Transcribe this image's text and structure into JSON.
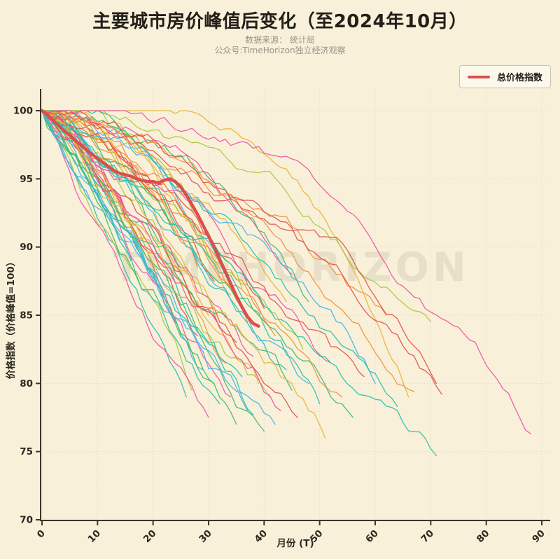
{
  "page": {
    "background": "#f9f0da"
  },
  "header": {
    "title": "主要城市房价峰值后变化（至2024年10月）",
    "subtitle_line1": "数据来源： 统计局",
    "subtitle_line2": "公众号:TimeHorizon独立经济观察"
  },
  "watermark": "TIMEHORIZON",
  "chart_data": {
    "type": "line",
    "title": "主要城市房价峰值后变化（至2024年10月）",
    "xlabel": "月份 (T)",
    "ylabel": "价格指数（价格峰值=100）",
    "xlim": [
      0,
      91.5
    ],
    "ylim": [
      70,
      101.6
    ],
    "x_ticks": [
      0,
      10,
      20,
      30,
      40,
      50,
      60,
      70,
      80,
      90
    ],
    "y_ticks": [
      70,
      75,
      80,
      85,
      90,
      95,
      100
    ],
    "grid": true,
    "colors": {
      "background": "#f9f0da",
      "grid": "#e7ddc2",
      "spine": "#3a362c",
      "tick_label": "#2c2920",
      "total_line": "#d9504b"
    },
    "legend": {
      "position": "top-right",
      "entries": [
        {
          "label": "总价格指数",
          "color": "#d9504b"
        }
      ]
    },
    "total_index": {
      "name": "总价格指数",
      "color": "#d9504b",
      "line_width": 4.5,
      "points": [
        [
          0,
          100
        ],
        [
          1,
          99.7
        ],
        [
          2,
          99.3
        ],
        [
          3,
          98.9
        ],
        [
          4,
          98.5
        ],
        [
          5,
          98.2
        ],
        [
          6,
          97.8
        ],
        [
          7,
          97.5
        ],
        [
          8,
          97.1
        ],
        [
          9,
          96.8
        ],
        [
          10,
          96.5
        ],
        [
          11,
          96.2
        ],
        [
          12,
          95.9
        ],
        [
          13,
          95.6
        ],
        [
          14,
          95.4
        ],
        [
          15,
          95.3
        ],
        [
          16,
          95.2
        ],
        [
          17,
          95.0
        ],
        [
          18,
          94.9
        ],
        [
          19,
          94.8
        ],
        [
          20,
          94.8
        ],
        [
          21,
          94.7
        ],
        [
          22,
          94.9
        ],
        [
          23,
          95.0
        ],
        [
          24,
          94.8
        ],
        [
          25,
          94.4
        ],
        [
          26,
          93.8
        ],
        [
          27,
          93.1
        ],
        [
          28,
          92.4
        ],
        [
          29,
          91.6
        ],
        [
          30,
          90.8
        ],
        [
          31,
          90.0
        ],
        [
          32,
          89.1
        ],
        [
          33,
          88.2
        ],
        [
          34,
          87.3
        ],
        [
          35,
          86.4
        ],
        [
          36,
          85.6
        ],
        [
          37,
          84.9
        ],
        [
          38,
          84.4
        ],
        [
          39,
          84.2
        ]
      ]
    },
    "city_lines": {
      "description": "各城市价格指数（峰值=100后逐月变化，未标注城市名）",
      "line_width": 1.3,
      "palette": [
        "#e7b53c",
        "#f0923e",
        "#e2554d",
        "#ee58a5",
        "#adc83e",
        "#46b96d",
        "#2dc1a7",
        "#49b5e7"
      ],
      "fields": [
        "end_month",
        "end_value",
        "curve_exponent",
        "noise_amplitude",
        "seed",
        "color_index"
      ],
      "lines": [
        [
          16,
          89,
          1.2,
          0.5,
          11,
          6
        ],
        [
          20,
          88.5,
          1.4,
          0.55,
          23,
          0
        ],
        [
          22,
          86,
          1.1,
          0.5,
          37,
          7
        ],
        [
          24,
          84.5,
          1.3,
          0.6,
          41,
          3
        ],
        [
          25,
          88,
          1.6,
          0.55,
          53,
          5
        ],
        [
          26,
          79,
          0.9,
          0.6,
          67,
          6
        ],
        [
          27,
          79.5,
          1.0,
          0.6,
          71,
          4
        ],
        [
          28,
          83.5,
          1.2,
          0.6,
          83,
          2
        ],
        [
          28,
          88.5,
          1.8,
          0.5,
          97,
          1
        ],
        [
          29,
          81,
          1.1,
          0.6,
          101,
          7
        ],
        [
          30,
          77.5,
          0.95,
          0.6,
          113,
          3
        ],
        [
          30,
          85,
          1.5,
          0.55,
          127,
          0
        ],
        [
          31,
          80,
          1.1,
          0.6,
          131,
          5
        ],
        [
          31,
          87.5,
          1.9,
          0.5,
          139,
          2
        ],
        [
          32,
          78.5,
          1.0,
          0.6,
          149,
          6
        ],
        [
          32,
          84,
          1.4,
          0.6,
          151,
          4
        ],
        [
          33,
          81.5,
          1.2,
          0.6,
          163,
          1
        ],
        [
          33,
          88,
          2.0,
          0.5,
          167,
          7
        ],
        [
          34,
          79,
          1.05,
          0.6,
          179,
          3
        ],
        [
          34,
          86.5,
          1.7,
          0.55,
          181,
          0
        ],
        [
          35,
          77,
          0.95,
          0.65,
          191,
          5
        ],
        [
          35,
          83,
          1.3,
          0.6,
          193,
          2
        ],
        [
          36,
          80.5,
          1.15,
          0.6,
          197,
          6
        ],
        [
          36,
          87,
          1.9,
          0.5,
          199,
          4
        ],
        [
          37,
          78,
          1.0,
          0.65,
          211,
          7
        ],
        [
          37,
          84.5,
          1.5,
          0.55,
          223,
          1
        ],
        [
          38,
          77.7,
          1.0,
          0.65,
          227,
          6
        ],
        [
          38,
          82,
          1.25,
          0.6,
          229,
          3
        ],
        [
          39,
          80,
          1.15,
          0.6,
          233,
          0
        ],
        [
          40,
          76.5,
          1.0,
          0.65,
          239,
          5
        ],
        [
          40,
          85.5,
          1.7,
          0.5,
          241,
          2
        ],
        [
          41,
          79,
          1.1,
          0.6,
          251,
          4
        ],
        [
          42,
          77,
          1.05,
          0.6,
          257,
          7
        ],
        [
          42,
          83.5,
          1.5,
          0.55,
          263,
          1
        ],
        [
          43,
          78,
          1.1,
          0.6,
          269,
          3
        ],
        [
          44,
          81,
          1.3,
          0.55,
          271,
          6
        ],
        [
          44,
          86,
          1.9,
          0.5,
          277,
          0
        ],
        [
          45,
          88,
          2.5,
          0.45,
          281,
          3
        ],
        [
          45,
          79.5,
          1.15,
          0.6,
          283,
          5
        ],
        [
          46,
          77.5,
          1.1,
          0.6,
          293,
          2
        ],
        [
          47,
          82.5,
          1.45,
          0.55,
          307,
          4
        ],
        [
          48,
          86,
          2.8,
          0.45,
          311,
          5
        ],
        [
          48,
          80,
          1.2,
          0.55,
          313,
          7
        ],
        [
          50,
          78.5,
          1.15,
          0.55,
          317,
          6
        ],
        [
          51,
          76,
          1.05,
          0.55,
          331,
          0
        ],
        [
          52,
          81.5,
          1.45,
          0.5,
          337,
          3
        ],
        [
          54,
          79,
          1.2,
          0.5,
          347,
          1
        ],
        [
          56,
          77.5,
          1.15,
          0.5,
          349,
          5
        ],
        [
          58,
          80.5,
          1.4,
          0.5,
          353,
          2
        ],
        [
          60,
          80,
          1.5,
          0.45,
          359,
          7
        ],
        [
          62,
          85,
          2.2,
          0.45,
          367,
          1
        ],
        [
          64,
          78.3,
          1.3,
          0.45,
          373,
          6
        ],
        [
          66,
          79,
          3.2,
          0.4,
          379,
          0
        ],
        [
          67,
          79.4,
          1.6,
          0.45,
          383,
          1
        ],
        [
          70,
          84.5,
          1.8,
          0.4,
          389,
          4
        ],
        [
          71,
          74.7,
          1.25,
          0.45,
          397,
          6
        ],
        [
          71,
          80,
          1.6,
          0.45,
          401,
          2
        ],
        [
          72,
          79.2,
          1.7,
          0.45,
          409,
          2
        ],
        [
          88,
          76.3,
          2.2,
          0.4,
          419,
          3
        ]
      ]
    }
  }
}
